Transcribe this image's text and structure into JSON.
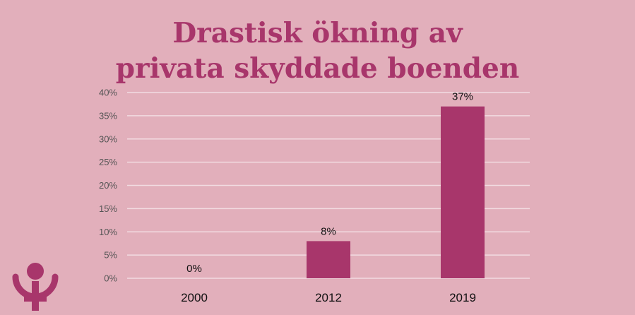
{
  "title_lines": [
    "Drastisk ökning av",
    "privata skyddade boenden"
  ],
  "colors": {
    "background": "#e2afbb",
    "bar": "#a8366b",
    "title": "#a8366b",
    "gridline": "#f2dbe1",
    "tick_text": "#555555",
    "label_text": "#111111"
  },
  "logo": {
    "icon": "venus-symbol-icon"
  },
  "chart_data": {
    "type": "bar",
    "categories": [
      "2000",
      "2012",
      "2019"
    ],
    "values": [
      0,
      8,
      37
    ],
    "value_labels": [
      "0%",
      "8%",
      "37%"
    ],
    "yticks": [
      "0%",
      "5%",
      "10%",
      "15%",
      "20%",
      "25%",
      "30%",
      "35%",
      "40%"
    ],
    "ylim": [
      0,
      40
    ],
    "grid": true,
    "legend": "none"
  }
}
